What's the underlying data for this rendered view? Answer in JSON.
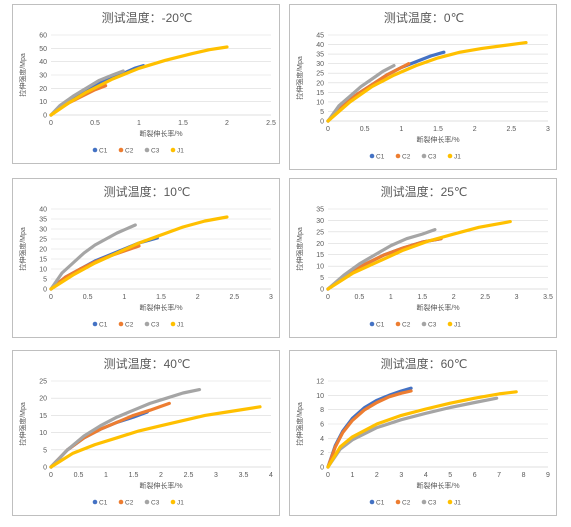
{
  "colors": {
    "C1": "#4472c4",
    "C2": "#ed7d31",
    "C3": "#a5a5a5",
    "J1": "#ffc000",
    "grid": "#d9d9d9",
    "axis": "#bfbfbf",
    "text": "#595959"
  },
  "chart_data": [
    {
      "type": "line",
      "title": "测试温度：-20℃",
      "xlabel": "断裂伸长率/%",
      "ylabel": "拉伸强度/Mpa",
      "xlim": [
        0,
        2.5
      ],
      "ylim": [
        0,
        60
      ],
      "xticks": [
        0,
        0.5,
        1,
        1.5,
        2,
        2.5
      ],
      "yticks": [
        0,
        10,
        20,
        30,
        40,
        50,
        60
      ],
      "legend": [
        "C1",
        "C2",
        "C3",
        "J1"
      ],
      "series": [
        {
          "name": "C1",
          "color": "#4472c4",
          "x": [
            0,
            0.1,
            0.25,
            0.4,
            0.55,
            0.7,
            0.85,
            0.95,
            1.05
          ],
          "y": [
            0,
            6,
            13,
            19,
            24,
            28,
            32,
            35,
            37
          ]
        },
        {
          "name": "C2",
          "color": "#ed7d31",
          "x": [
            0,
            0.1,
            0.2,
            0.35,
            0.5,
            0.62
          ],
          "y": [
            0,
            5,
            9,
            14,
            19,
            22
          ]
        },
        {
          "name": "C3",
          "color": "#a5a5a5",
          "x": [
            0,
            0.1,
            0.25,
            0.4,
            0.55,
            0.7,
            0.82
          ],
          "y": [
            0,
            7,
            14,
            20,
            26,
            30,
            33
          ]
        },
        {
          "name": "J1",
          "color": "#ffc000",
          "x": [
            0,
            0.2,
            0.4,
            0.7,
            1.0,
            1.3,
            1.6,
            1.8,
            2.0
          ],
          "y": [
            0,
            9,
            17,
            27,
            35,
            41,
            46,
            49,
            51
          ]
        }
      ]
    },
    {
      "type": "line",
      "title": "测试温度：0℃",
      "xlabel": "断裂伸长率/%",
      "ylabel": "拉伸强度/Mpa",
      "xlim": [
        0,
        3
      ],
      "ylim": [
        0,
        45
      ],
      "xticks": [
        0,
        0.5,
        1,
        1.5,
        2,
        2.5,
        3
      ],
      "yticks": [
        0,
        5,
        10,
        15,
        20,
        25,
        30,
        35,
        40,
        45
      ],
      "legend": [
        "C1",
        "C2",
        "C3",
        "J1"
      ],
      "series": [
        {
          "name": "C1",
          "color": "#4472c4",
          "x": [
            0,
            0.2,
            0.4,
            0.6,
            0.8,
            1.0,
            1.2,
            1.4,
            1.58
          ],
          "y": [
            0,
            8,
            14,
            19,
            24,
            28,
            31,
            34,
            36
          ]
        },
        {
          "name": "C2",
          "color": "#ed7d31",
          "x": [
            0,
            0.2,
            0.4,
            0.6,
            0.8,
            1.0,
            1.1
          ],
          "y": [
            0,
            8,
            14,
            19,
            24,
            28,
            30
          ]
        },
        {
          "name": "C3",
          "color": "#a5a5a5",
          "x": [
            0,
            0.15,
            0.3,
            0.45,
            0.6,
            0.75,
            0.9
          ],
          "y": [
            0,
            8,
            13,
            18,
            22,
            26,
            29
          ]
        },
        {
          "name": "J1",
          "color": "#ffc000",
          "x": [
            0,
            0.3,
            0.6,
            0.9,
            1.2,
            1.5,
            1.8,
            2.1,
            2.4,
            2.7
          ],
          "y": [
            0,
            10,
            18,
            24,
            29,
            33,
            36,
            38,
            39.5,
            41
          ]
        }
      ]
    },
    {
      "type": "line",
      "title": "测试温度：10℃",
      "xlabel": "断裂伸长率/%",
      "ylabel": "拉伸强度/Mpa",
      "xlim": [
        0,
        3
      ],
      "ylim": [
        0,
        40
      ],
      "xticks": [
        0,
        0.5,
        1,
        1.5,
        2,
        2.5,
        3
      ],
      "yticks": [
        0,
        5,
        10,
        15,
        20,
        25,
        30,
        35,
        40
      ],
      "legend": [
        "C1",
        "C2",
        "C3",
        "J1"
      ],
      "series": [
        {
          "name": "C1",
          "color": "#4472c4",
          "x": [
            0,
            0.2,
            0.4,
            0.6,
            0.8,
            1.0,
            1.2,
            1.45
          ],
          "y": [
            0,
            6,
            10,
            14,
            17,
            20,
            23,
            25.5
          ]
        },
        {
          "name": "C2",
          "color": "#ed7d31",
          "x": [
            0,
            0.2,
            0.4,
            0.6,
            0.8,
            1.0,
            1.2
          ],
          "y": [
            0,
            6,
            10,
            13.5,
            16.5,
            19,
            21.5
          ]
        },
        {
          "name": "C3",
          "color": "#a5a5a5",
          "x": [
            0,
            0.15,
            0.3,
            0.45,
            0.6,
            0.75,
            0.9,
            1.15
          ],
          "y": [
            0,
            8,
            13,
            18,
            22,
            25,
            28,
            32
          ]
        },
        {
          "name": "J1",
          "color": "#ffc000",
          "x": [
            0,
            0.3,
            0.6,
            0.9,
            1.2,
            1.5,
            1.8,
            2.1,
            2.4
          ],
          "y": [
            0,
            7,
            13,
            18,
            23,
            27,
            31,
            34,
            36
          ]
        }
      ]
    },
    {
      "type": "line",
      "title": "测试温度：25℃",
      "xlabel": "断裂伸长率/%",
      "ylabel": "拉伸强度/Mpa",
      "xlim": [
        0,
        3.5
      ],
      "ylim": [
        0,
        35
      ],
      "xticks": [
        0,
        0.5,
        1,
        1.5,
        2,
        2.5,
        3,
        3.5
      ],
      "yticks": [
        0,
        5,
        10,
        15,
        20,
        25,
        30,
        35
      ],
      "legend": [
        "C1",
        "C2",
        "C3",
        "J1"
      ],
      "series": [
        {
          "name": "C1",
          "color": "#4472c4",
          "x": [
            0,
            0.3,
            0.6,
            0.9,
            1.2,
            1.5,
            1.8
          ],
          "y": [
            0,
            6,
            11,
            15,
            18,
            20.5,
            22
          ]
        },
        {
          "name": "C2",
          "color": "#ed7d31",
          "x": [
            0,
            0.3,
            0.6,
            0.9,
            1.2,
            1.5,
            1.8
          ],
          "y": [
            0,
            6,
            11,
            15,
            18,
            20.5,
            22
          ]
        },
        {
          "name": "C3",
          "color": "#a5a5a5",
          "x": [
            0,
            0.25,
            0.5,
            0.75,
            1.0,
            1.25,
            1.5,
            1.7
          ],
          "y": [
            0,
            6,
            11,
            15,
            19,
            22,
            24,
            26
          ]
        },
        {
          "name": "J1",
          "color": "#ffc000",
          "x": [
            0,
            0.4,
            0.8,
            1.2,
            1.6,
            2.0,
            2.4,
            2.9
          ],
          "y": [
            0,
            7,
            12,
            17,
            21,
            24,
            27,
            29.5
          ]
        }
      ]
    },
    {
      "type": "line",
      "title": "测试温度：40℃",
      "xlabel": "断裂伸长率/%",
      "ylabel": "拉伸强度/Mpa",
      "xlim": [
        0,
        4
      ],
      "ylim": [
        0,
        25
      ],
      "xticks": [
        0,
        0.5,
        1,
        1.5,
        2,
        2.5,
        3,
        3.5,
        4
      ],
      "yticks": [
        0,
        5,
        10,
        15,
        20,
        25
      ],
      "legend": [
        "C1",
        "C2",
        "C3",
        "J1"
      ],
      "series": [
        {
          "name": "C1",
          "color": "#4472c4",
          "x": [
            0,
            0.3,
            0.6,
            0.9,
            1.2,
            1.5,
            1.75
          ],
          "y": [
            0,
            5,
            8.5,
            11,
            13,
            14.5,
            16
          ]
        },
        {
          "name": "C2",
          "color": "#ed7d31",
          "x": [
            0,
            0.3,
            0.6,
            0.9,
            1.2,
            1.5,
            1.8,
            2.15
          ],
          "y": [
            0,
            5,
            8.5,
            11,
            13,
            15,
            16.5,
            18.5
          ]
        },
        {
          "name": "C3",
          "color": "#a5a5a5",
          "x": [
            0,
            0.3,
            0.6,
            0.9,
            1.2,
            1.5,
            1.8,
            2.1,
            2.4,
            2.7
          ],
          "y": [
            0,
            5,
            9,
            12,
            14.5,
            16.5,
            18.5,
            20,
            21.5,
            22.5
          ]
        },
        {
          "name": "J1",
          "color": "#ffc000",
          "x": [
            0,
            0.4,
            0.8,
            1.2,
            1.6,
            2.0,
            2.4,
            2.8,
            3.2,
            3.8
          ],
          "y": [
            0,
            4,
            6.5,
            8.5,
            10.5,
            12,
            13.5,
            15,
            16,
            17.5
          ]
        }
      ]
    },
    {
      "type": "line",
      "title": "测试温度：60℃",
      "xlabel": "断裂伸长率/%",
      "ylabel": "拉伸强度/Mpa",
      "xlim": [
        0,
        9
      ],
      "ylim": [
        0,
        12
      ],
      "xticks": [
        0,
        1,
        2,
        3,
        4,
        5,
        6,
        7,
        8,
        9
      ],
      "yticks": [
        0,
        2,
        4,
        6,
        8,
        10,
        12
      ],
      "legend": [
        "C1",
        "C2",
        "C3",
        "J1"
      ],
      "series": [
        {
          "name": "C1",
          "color": "#4472c4",
          "x": [
            0,
            0.3,
            0.6,
            1.0,
            1.5,
            2.0,
            2.5,
            3.0,
            3.4
          ],
          "y": [
            0,
            3,
            5,
            6.8,
            8.3,
            9.3,
            10,
            10.6,
            11
          ]
        },
        {
          "name": "C2",
          "color": "#ed7d31",
          "x": [
            0,
            0.3,
            0.6,
            1.0,
            1.5,
            2.0,
            2.5,
            3.0,
            3.4
          ],
          "y": [
            0,
            2.8,
            4.8,
            6.5,
            8,
            9,
            9.8,
            10.3,
            10.6
          ]
        },
        {
          "name": "C3",
          "color": "#a5a5a5",
          "x": [
            0,
            0.5,
            1.0,
            2.0,
            3.0,
            4.0,
            5.0,
            6.0,
            6.9
          ],
          "y": [
            0,
            2.5,
            3.8,
            5.5,
            6.6,
            7.5,
            8.3,
            9,
            9.6
          ]
        },
        {
          "name": "J1",
          "color": "#ffc000",
          "x": [
            0,
            0.5,
            1.0,
            2.0,
            3.0,
            4.0,
            5.0,
            6.0,
            7.0,
            7.7
          ],
          "y": [
            0,
            2.8,
            4.2,
            6,
            7.2,
            8.1,
            8.9,
            9.6,
            10.2,
            10.5
          ]
        }
      ]
    }
  ]
}
